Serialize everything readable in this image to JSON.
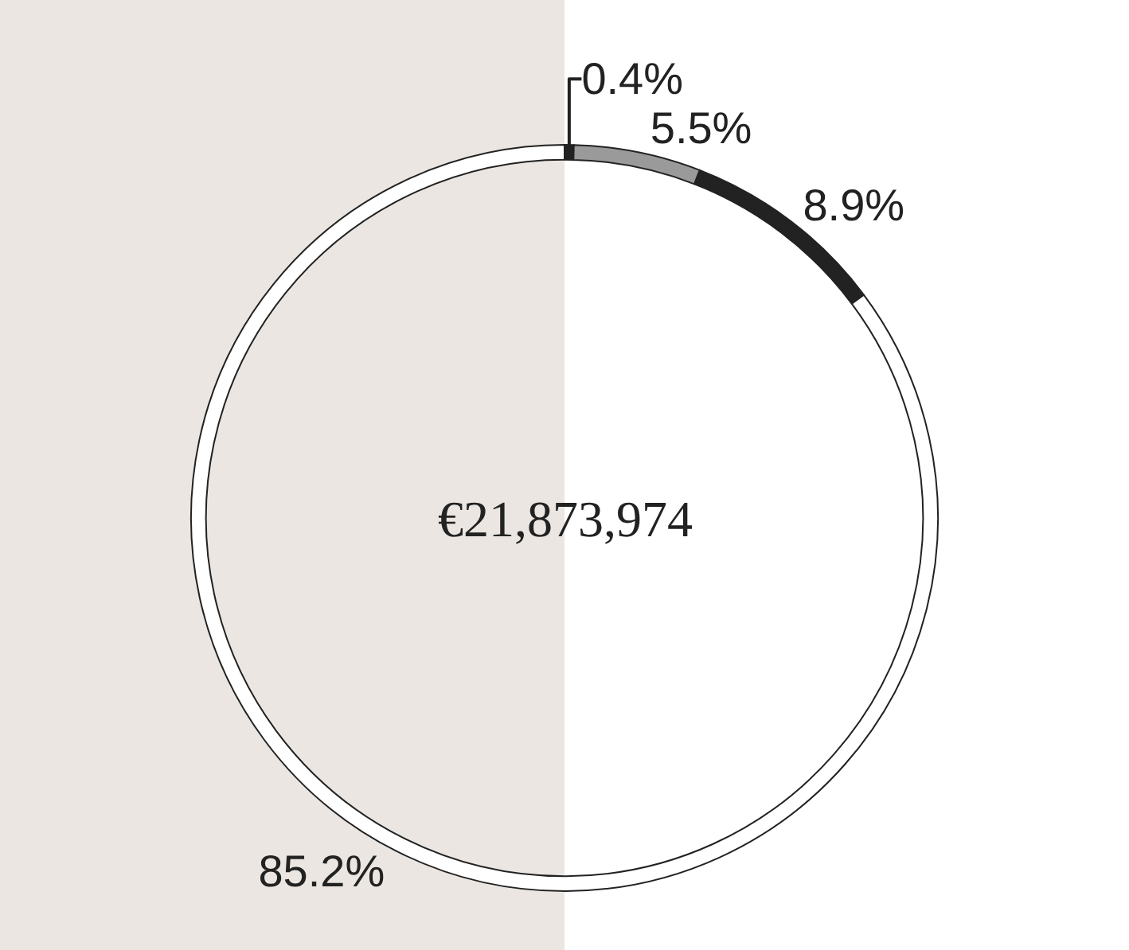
{
  "chart_data": {
    "type": "donut",
    "categories": [
      null,
      null,
      null,
      null
    ],
    "values": [
      0.4,
      5.5,
      8.9,
      85.2
    ],
    "colors": [
      "#222222",
      "#9a9a9a",
      "#222222",
      "#ffffff"
    ],
    "value_labels": [
      "0.4%",
      "5.5%",
      "8.9%",
      "85.2%"
    ],
    "annotations": [
      "€21,873,974"
    ],
    "legend": false
  }
}
